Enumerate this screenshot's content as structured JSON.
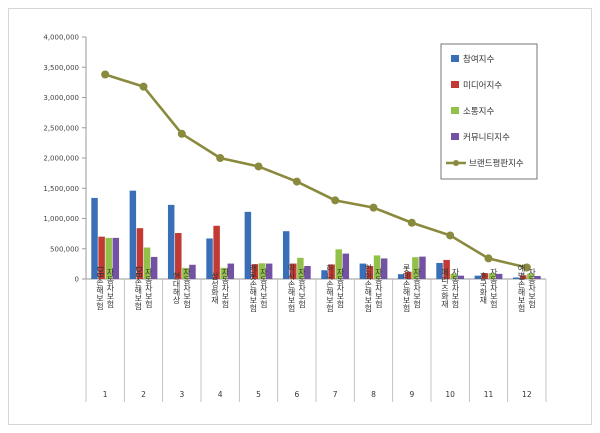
{
  "chart_data": {
    "type": "bar",
    "yticks": [
      "0",
      "500,000",
      "1,000,000",
      "1,500,000",
      "2,000,000",
      "2,500,000",
      "3,000,000",
      "3,500,000",
      "4,000,000"
    ],
    "ylim": [
      0,
      4000000
    ],
    "grid": false,
    "legend_position": "top-right",
    "categories": [
      "1",
      "2",
      "3",
      "4",
      "5",
      "6",
      "7",
      "8",
      "9",
      "10",
      "11",
      "12"
    ],
    "category_names": [
      "DB손해보험 자동차보험",
      "DB손해보험 자동차보험",
      "현대해상 자동차보험",
      "삼성화재 자동차보험",
      "캐롯손해보험 자동차보험",
      "악사손해보험 자동차보험",
      "하나손해보험 자동차보험",
      "한화손해보험 자동차보험",
      "롯데손해보험 자동차보험",
      "메리츠화재 자동차보험",
      "흥국화재 자동차보험",
      "예별손해보험 자동차보험"
    ],
    "series": [
      {
        "name": "참여지수",
        "kind": "bar",
        "color": "#3a6fb8",
        "values": [
          1340000,
          1460000,
          1225000,
          670000,
          1110000,
          790000,
          145000,
          255000,
          80000,
          265000,
          55000,
          25000
        ]
      },
      {
        "name": "미디어지수",
        "kind": "bar",
        "color": "#c23a33",
        "values": [
          700000,
          840000,
          760000,
          880000,
          245000,
          255000,
          240000,
          215000,
          120000,
          315000,
          95000,
          60000
        ]
      },
      {
        "name": "소통지수",
        "kind": "bar",
        "color": "#92c14a",
        "values": [
          680000,
          520000,
          185000,
          185000,
          260000,
          350000,
          490000,
          390000,
          360000,
          85000,
          95000,
          90000
        ]
      },
      {
        "name": "커뮤니티지수",
        "kind": "bar",
        "color": "#7452a3",
        "values": [
          680000,
          365000,
          235000,
          255000,
          255000,
          215000,
          420000,
          340000,
          370000,
          55000,
          85000,
          50000
        ]
      },
      {
        "name": "브랜드평판지수",
        "kind": "line",
        "color": "#8a8a3e",
        "values": [
          3380000,
          3180000,
          2400000,
          2000000,
          1860000,
          1610000,
          1300000,
          1180000,
          930000,
          720000,
          340000,
          190000
        ]
      }
    ]
  }
}
